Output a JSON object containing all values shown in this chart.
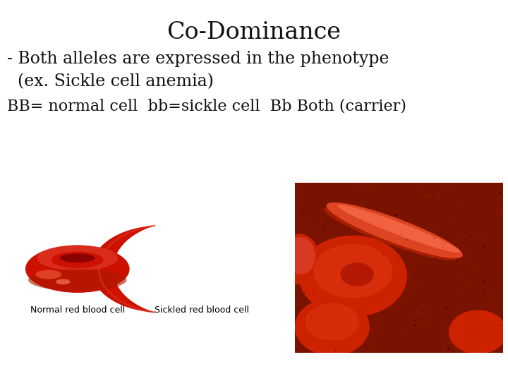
{
  "title": "Co-Dominance",
  "line1": "- Both alleles are expressed in the phenotype",
  "line2": "  (ex. Sickle cell anemia)",
  "line3": "BB= normal cell  bb=sickle cell  Bb Both (carrier)",
  "bg_color": "#ffffff",
  "title_fontsize": 24,
  "body_fontsize": 17,
  "line3_fontsize": 16,
  "text_color": "#111111",
  "label1": "Normal red blood cell",
  "label2": "Sickled red blood cell",
  "label_fontsize": 9,
  "cell_red": "#cc1100",
  "cell_red_light": "#dd3322",
  "cell_red_dark": "#8b0000",
  "cell_red_shine": "#ee5533",
  "sem_bg": "#7a1200",
  "sem_cell": "#cc2200",
  "sem_cell2": "#bb1a00",
  "sem_sickle": "#ee6644",
  "sem_highlight": "#ff8866"
}
